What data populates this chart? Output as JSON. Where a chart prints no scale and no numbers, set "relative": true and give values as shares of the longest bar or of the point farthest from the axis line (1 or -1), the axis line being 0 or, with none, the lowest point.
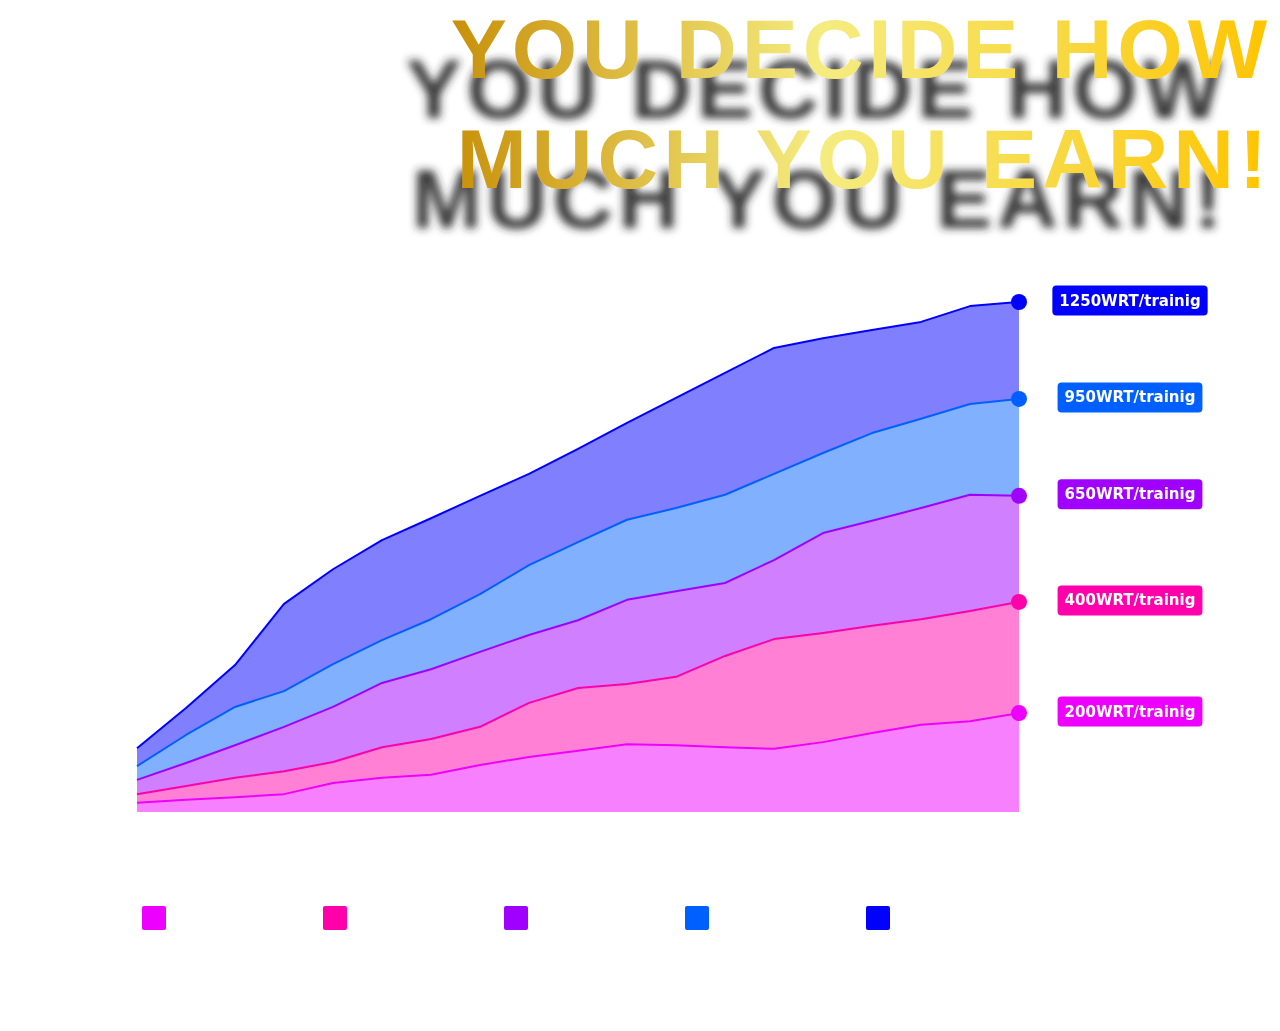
{
  "chart_data": {
    "type": "area",
    "title": "YOU DECIDE HOW MUCH YOU EARN!",
    "relative": true,
    "legend": "right",
    "categories": [
      null,
      null,
      null,
      null,
      null,
      null,
      null,
      null,
      null,
      null,
      null,
      null,
      null,
      null,
      null,
      null,
      null,
      null,
      null
    ],
    "series": [
      {
        "name": "200WRT/trainig",
        "color": "#ee00ff",
        "values": [
          0.018,
          0.024,
          0.029,
          0.035,
          0.057,
          0.067,
          0.073,
          0.092,
          0.108,
          0.12,
          0.133,
          0.131,
          0.127,
          0.124,
          0.137,
          0.155,
          0.171,
          0.178,
          0.194
        ]
      },
      {
        "name": "400WRT/trainig",
        "color": "#ff00aa",
        "values": [
          0.035,
          0.051,
          0.067,
          0.08,
          0.098,
          0.127,
          0.143,
          0.167,
          0.214,
          0.243,
          0.251,
          0.265,
          0.306,
          0.339,
          0.351,
          0.365,
          0.378,
          0.394,
          0.412
        ]
      },
      {
        "name": "650WRT/trainig",
        "color": "#a000ff",
        "values": [
          0.063,
          0.096,
          0.131,
          0.167,
          0.206,
          0.253,
          0.28,
          0.314,
          0.347,
          0.376,
          0.416,
          0.433,
          0.449,
          0.494,
          0.547,
          0.571,
          0.596,
          0.622,
          0.62
        ]
      },
      {
        "name": "950WRT/trainig",
        "color": "#0060ff",
        "values": [
          0.09,
          0.151,
          0.206,
          0.237,
          0.29,
          0.337,
          0.378,
          0.427,
          0.484,
          0.529,
          0.573,
          0.596,
          0.622,
          0.663,
          0.704,
          0.743,
          0.771,
          0.8,
          0.81
        ]
      },
      {
        "name": "1250WRT/trainig",
        "color": "#0000ff",
        "values": [
          0.125,
          0.204,
          0.288,
          0.408,
          0.476,
          0.533,
          0.576,
          0.62,
          0.663,
          0.712,
          0.763,
          0.812,
          0.861,
          0.91,
          0.929,
          0.945,
          0.961,
          0.992,
          1
        ]
      }
    ]
  }
}
